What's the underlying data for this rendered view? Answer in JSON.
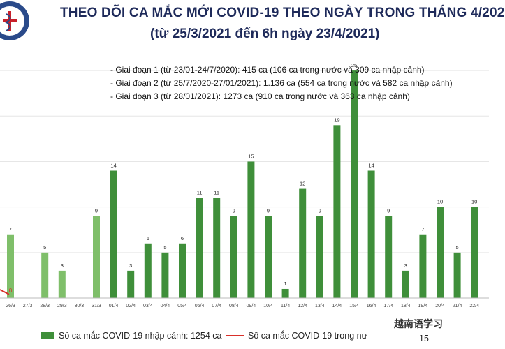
{
  "header": {
    "title": "THEO DÕI CA MẮC MỚI COVID-19 THEO NGÀY TRONG THÁNG 4/202",
    "subtitle": "(từ 25/3/2021 đến 6h ngày 23/4/2021)"
  },
  "notes": [
    "- Giai đoạn 1 (từ 23/01-24/7/2020): 415 ca (106 ca trong nước và 309 ca nhập cảnh)",
    "- Giai đoạn 2 (từ 25/7/2020-27/01/2021): 1.136 ca (554 ca trong nước và 582 ca nhập cảnh)",
    "- Giai đoạn 3 (từ 28/01/2021): 1273 ca (910 ca trong nước và 363 ca nhập cảnh)"
  ],
  "legend": {
    "bars": "Số ca mắc COVID-19 nhập cảnh: 1254 ca",
    "line": "Số ca mắc COVID-19 trong nư",
    "line_tail": "15"
  },
  "watermark": "越南语学习",
  "colors": {
    "bar": "#3f8f3a",
    "bar_light": "#7fbf6a",
    "line": "#d9302a",
    "title": "#1e2a5a"
  },
  "chart_data": {
    "type": "bar",
    "title": "THEO DÕI CA MẮC MỚI COVID-19 THEO NGÀY TRONG THÁNG 4/202",
    "categories": [
      "26/3",
      "27/3",
      "28/3",
      "29/3",
      "30/3",
      "31/3",
      "01/4",
      "02/4",
      "03/4",
      "04/4",
      "05/4",
      "06/4",
      "07/4",
      "08/4",
      "09/4",
      "10/4",
      "11/4",
      "12/4",
      "13/4",
      "14/4",
      "15/4",
      "16/4",
      "17/4",
      "18/4",
      "19/4",
      "20/4",
      "21/4",
      "22/4"
    ],
    "series": [
      {
        "name": "Số ca mắc COVID-19 nhập cảnh: 1254 ca",
        "values": [
          7,
          0,
          5,
          3,
          0,
          9,
          14,
          3,
          6,
          5,
          6,
          11,
          11,
          9,
          15,
          9,
          1,
          12,
          9,
          19,
          25,
          14,
          9,
          3,
          7,
          10,
          5,
          10
        ]
      }
    ],
    "ylim": [
      0,
      28
    ],
    "xlabel": "",
    "ylabel": "",
    "grid": true,
    "legend_position": "bottom"
  }
}
